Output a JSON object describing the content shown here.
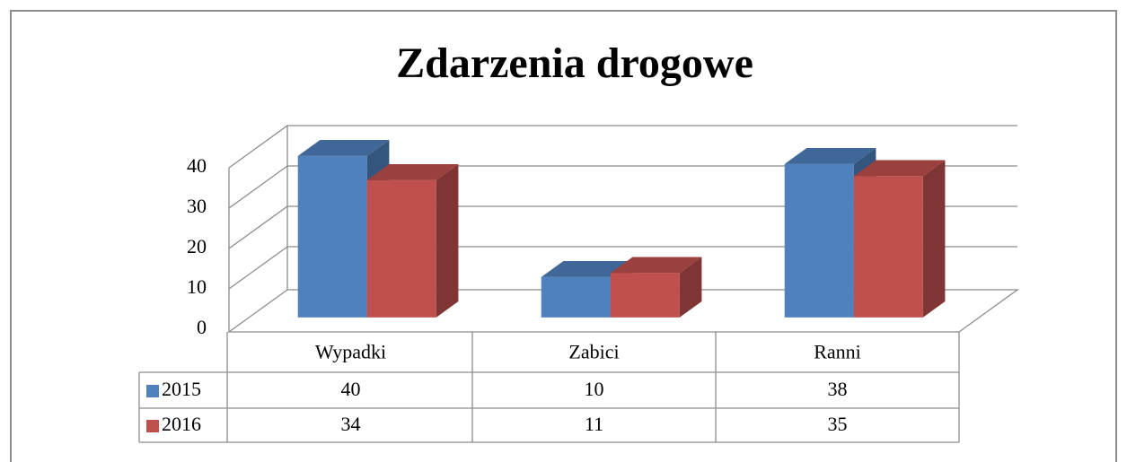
{
  "chart_data": {
    "type": "bar3d",
    "title": "Zdarzenia drogowe",
    "categories": [
      "Wypadki",
      "Zabici",
      "Ranni"
    ],
    "series": [
      {
        "name": "2015",
        "color": "#4f81bd",
        "values": [
          40,
          10,
          38
        ]
      },
      {
        "name": "2016",
        "color": "#c0504d",
        "values": [
          34,
          11,
          35
        ]
      }
    ],
    "ylim": [
      0,
      40
    ],
    "yticks": [
      0,
      10,
      20,
      30,
      40
    ],
    "grid": true,
    "data_table": true
  }
}
